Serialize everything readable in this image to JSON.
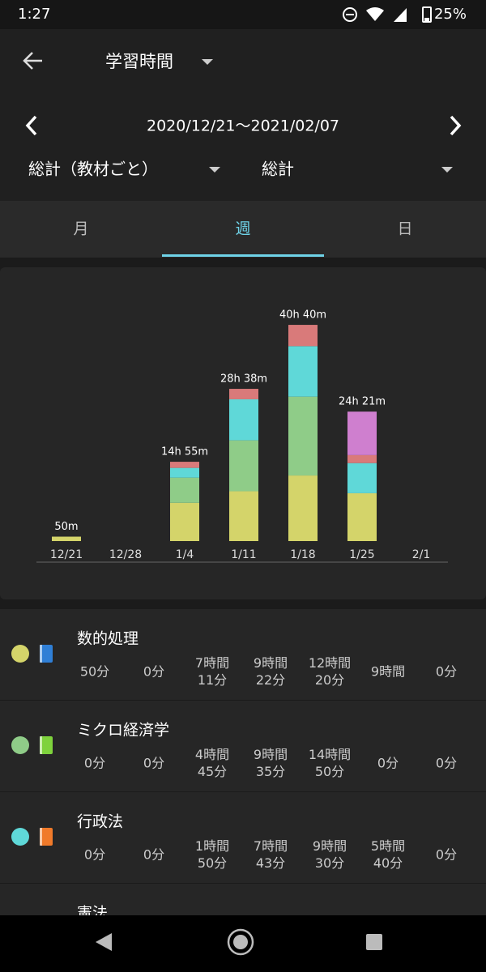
{
  "status_bar": {
    "time": "1:27",
    "battery": "25%"
  },
  "header": {
    "title": "学習時間",
    "date_range": "2020/12/21～2021/02/07",
    "filter_left": "総計（教材ごと）",
    "filter_right": "総計"
  },
  "tabs": [
    "月",
    "週",
    "日"
  ],
  "chart_data": {
    "type": "stacked_bar",
    "categories": [
      "12/21",
      "12/28",
      "1/4",
      "1/11",
      "1/18",
      "1/25",
      "2/1"
    ],
    "series": [
      {
        "name": "数的処理",
        "color": "#d4d46a",
        "values": [
          50,
          0,
          431,
          562,
          740,
          540,
          0
        ]
      },
      {
        "name": "ミクロ経済学",
        "color": "#8fcc88",
        "values": [
          0,
          0,
          285,
          575,
          890,
          0,
          0
        ]
      },
      {
        "name": "行政法",
        "color": "#5fd8d8",
        "values": [
          0,
          0,
          110,
          463,
          570,
          340,
          0
        ]
      },
      {
        "color": "#d97a7a",
        "values": [
          0,
          0,
          69,
          118,
          240,
          90,
          0
        ]
      },
      {
        "color": "#cf7fcf",
        "values": [
          0,
          0,
          0,
          0,
          0,
          491,
          0
        ]
      }
    ],
    "totals": [
      50,
      null,
      895,
      1718,
      2440,
      1461,
      null
    ],
    "total_labels": [
      "50m",
      null,
      "14h 55m",
      "28h 38m",
      "40h 40m",
      "24h 21m",
      null
    ]
  },
  "subjects": [
    {
      "name": "数的処理",
      "color": "#d4d46a",
      "icon_color": "#2f7fd6",
      "times": [
        [
          "50分"
        ],
        [
          "0分"
        ],
        [
          "7時間",
          "11分"
        ],
        [
          "9時間",
          "22分"
        ],
        [
          "12時間",
          "20分"
        ],
        [
          "9時間"
        ],
        [
          "0分"
        ]
      ]
    },
    {
      "name": "ミクロ経済学",
      "color": "#8fcc88",
      "icon_color": "#7ed23c",
      "times": [
        [
          "0分"
        ],
        [
          "0分"
        ],
        [
          "4時間",
          "45分"
        ],
        [
          "9時間",
          "35分"
        ],
        [
          "14時間",
          "50分"
        ],
        [
          "0分"
        ],
        [
          "0分"
        ]
      ]
    },
    {
      "name": "行政法",
      "color": "#5fd8d8",
      "icon_color": "#f07a2a",
      "times": [
        [
          "0分"
        ],
        [
          "0分"
        ],
        [
          "1時間",
          "50分"
        ],
        [
          "7時間",
          "43分"
        ],
        [
          "9時間",
          "30分"
        ],
        [
          "5時間",
          "40分"
        ],
        [
          "0分"
        ]
      ]
    },
    {
      "name": "憲法"
    }
  ]
}
